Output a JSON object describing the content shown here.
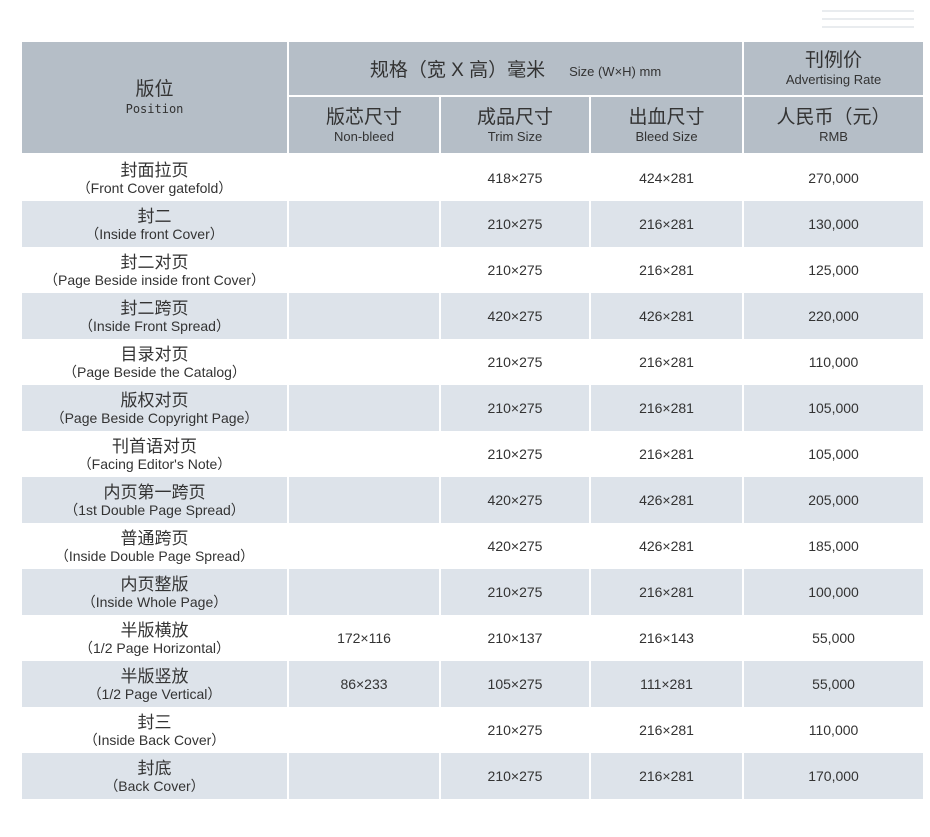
{
  "header": {
    "position_zh": "版位",
    "position_en": "Position",
    "spec_zh": "规格（宽 X 高）毫米",
    "spec_en": "Size (W×H) mm",
    "rate_zh": "刊例价",
    "rate_en": "Advertising Rate",
    "nonbleed_zh": "版芯尺寸",
    "nonbleed_en": "Non-bleed",
    "trim_zh": "成品尺寸",
    "trim_en": "Trim Size",
    "bleed_zh": "出血尺寸",
    "bleed_en": "Bleed Size",
    "rmb_zh": "人民币（元）",
    "rmb_en": "RMB"
  },
  "rows": [
    {
      "zh": "封面拉页",
      "en": "（Front Cover gatefold）",
      "nonbleed": "",
      "trim": "418×275",
      "bleed": "424×281",
      "rate": "270,000"
    },
    {
      "zh": "封二",
      "en": "（Inside front Cover）",
      "nonbleed": "",
      "trim": "210×275",
      "bleed": "216×281",
      "rate": "130,000"
    },
    {
      "zh": "封二对页",
      "en": "（Page Beside inside front Cover）",
      "nonbleed": "",
      "trim": "210×275",
      "bleed": "216×281",
      "rate": "125,000"
    },
    {
      "zh": "封二跨页",
      "en": "（Inside Front Spread）",
      "nonbleed": "",
      "trim": "420×275",
      "bleed": "426×281",
      "rate": "220,000"
    },
    {
      "zh": "目录对页",
      "en": "（Page Beside the Catalog）",
      "nonbleed": "",
      "trim": "210×275",
      "bleed": "216×281",
      "rate": "110,000"
    },
    {
      "zh": "版权对页",
      "en": "（Page Beside Copyright Page）",
      "nonbleed": "",
      "trim": "210×275",
      "bleed": "216×281",
      "rate": "105,000"
    },
    {
      "zh": "刊首语对页",
      "en": "（Facing Editor's Note）",
      "nonbleed": "",
      "trim": "210×275",
      "bleed": "216×281",
      "rate": "105,000"
    },
    {
      "zh": "内页第一跨页",
      "en": "（1st Double Page Spread）",
      "nonbleed": "",
      "trim": "420×275",
      "bleed": "426×281",
      "rate": "205,000"
    },
    {
      "zh": "普通跨页",
      "en": "（Inside Double Page Spread）",
      "nonbleed": "",
      "trim": "420×275",
      "bleed": "426×281",
      "rate": "185,000"
    },
    {
      "zh": "内页整版",
      "en": "（Inside Whole Page）",
      "nonbleed": "",
      "trim": "210×275",
      "bleed": "216×281",
      "rate": "100,000"
    },
    {
      "zh": "半版横放",
      "en": "（1/2 Page Horizontal）",
      "nonbleed": "172×116",
      "trim": "210×137",
      "bleed": "216×143",
      "rate": "55,000"
    },
    {
      "zh": "半版竖放",
      "en": "（1/2 Page Vertical）",
      "nonbleed": "86×233",
      "trim": "105×275",
      "bleed": "111×281",
      "rate": "55,000"
    },
    {
      "zh": "封三",
      "en": "（Inside Back Cover）",
      "nonbleed": "",
      "trim": "210×275",
      "bleed": "216×281",
      "rate": "110,000"
    },
    {
      "zh": "封底",
      "en": "（Back Cover）",
      "nonbleed": "",
      "trim": "210×275",
      "bleed": "216×281",
      "rate": "170,000"
    }
  ]
}
